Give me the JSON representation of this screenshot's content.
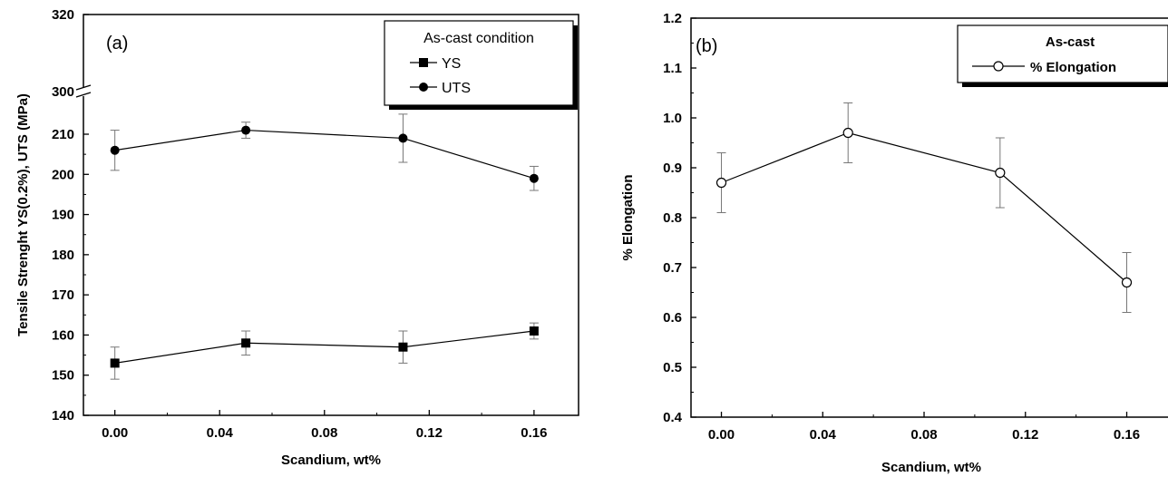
{
  "chart_data": [
    {
      "type": "line",
      "panel_label": "(a)",
      "xlabel": "Scandium, wt%",
      "ylabel": "Tensile Strenght  YS(0.2%), UTS  (MPa)",
      "x_ticks": [
        "0.00",
        "0.04",
        "0.08",
        "0.12",
        "0.16"
      ],
      "y_ticks": [
        "140",
        "150",
        "160",
        "170",
        "180",
        "190",
        "200",
        "210",
        "300",
        "320"
      ],
      "xlim": [
        -0.012,
        0.177
      ],
      "ylim": [
        140,
        320
      ],
      "y_axis_break": [
        215,
        298
      ],
      "legend": {
        "title": "As-cast condition",
        "position": "top-right"
      },
      "series": [
        {
          "name": "YS",
          "marker": "square-filled",
          "x": [
            0.0,
            0.05,
            0.11,
            0.16
          ],
          "y": [
            153,
            158,
            157,
            161
          ],
          "err": [
            4,
            3,
            4,
            2
          ]
        },
        {
          "name": "UTS",
          "marker": "circle-filled",
          "x": [
            0.0,
            0.05,
            0.11,
            0.16
          ],
          "y": [
            206,
            211,
            209,
            199
          ],
          "err": [
            5,
            2,
            6,
            3
          ]
        }
      ]
    },
    {
      "type": "line",
      "panel_label": "(b)",
      "xlabel": "Scandium, wt%",
      "ylabel": "% Elongation",
      "x_ticks": [
        "0.00",
        "0.04",
        "0.08",
        "0.12",
        "0.16"
      ],
      "y_ticks": [
        "0.4",
        "0.5",
        "0.6",
        "0.7",
        "0.8",
        "0.9",
        "1.0",
        "1.1",
        "1.2"
      ],
      "xlim": [
        -0.012,
        0.177
      ],
      "ylim": [
        0.4,
        1.2
      ],
      "legend": {
        "title": "As-cast",
        "position": "top-right"
      },
      "series": [
        {
          "name": "% Elongation",
          "marker": "circle-open",
          "x": [
            0.0,
            0.05,
            0.11,
            0.16
          ],
          "y": [
            0.87,
            0.97,
            0.89,
            0.67
          ],
          "err": [
            0.06,
            0.06,
            0.07,
            0.06
          ]
        }
      ]
    }
  ]
}
